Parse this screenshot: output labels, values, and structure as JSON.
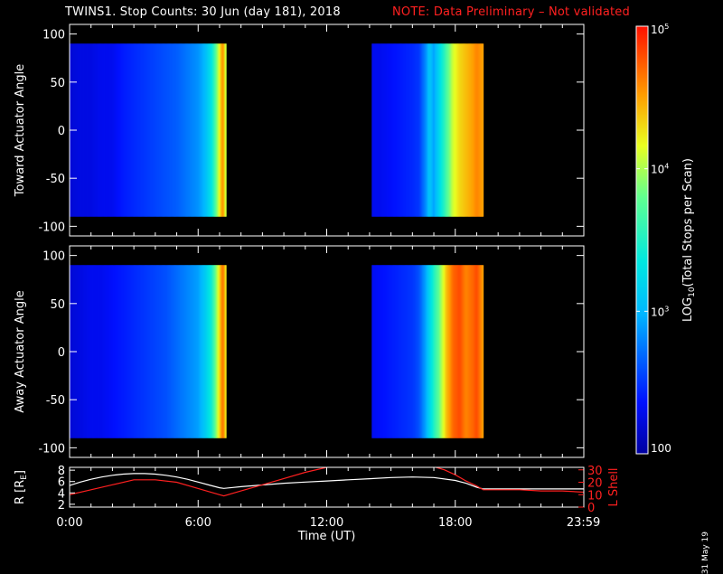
{
  "header": {
    "title": "TWINS1. Stop Counts: 30 Jun (day 181), 2018",
    "note": "NOTE: Data Preliminary – Not validated"
  },
  "footer": {
    "date_stamp": "31 May 19"
  },
  "colors": {
    "background": "#000000",
    "axes": "#ffffff",
    "note": "#ff2020",
    "l_shell": "#ff2020",
    "radius": "#ffffff"
  },
  "chart_data": [
    {
      "type": "heatmap",
      "panel": "toward",
      "ylabel": "Toward Actuator Angle",
      "xlim": [
        0,
        24
      ],
      "ylim": [
        -110,
        110
      ],
      "yticks": [
        -100,
        -50,
        0,
        50,
        100
      ],
      "data_ylim": [
        -90,
        90
      ],
      "segments": [
        {
          "t_start": 0.0,
          "t_end": 7.3,
          "log_counts_profile": [
            [
              0.0,
              2.2
            ],
            [
              0.5,
              2.25
            ],
            [
              1.0,
              2.25
            ],
            [
              1.5,
              2.3
            ],
            [
              2.0,
              2.3
            ],
            [
              2.5,
              2.4
            ],
            [
              3.0,
              2.45
            ],
            [
              3.5,
              2.5
            ],
            [
              4.0,
              2.55
            ],
            [
              4.5,
              2.6
            ],
            [
              5.0,
              2.65
            ],
            [
              5.5,
              2.75
            ],
            [
              6.0,
              2.85
            ],
            [
              6.3,
              3.0
            ],
            [
              6.6,
              3.3
            ],
            [
              6.8,
              3.7
            ],
            [
              7.0,
              4.2
            ],
            [
              7.15,
              4.6
            ],
            [
              7.3,
              4.0
            ]
          ]
        },
        {
          "t_start": 14.1,
          "t_end": 19.3,
          "log_counts_profile": [
            [
              14.1,
              2.3
            ],
            [
              14.5,
              2.3
            ],
            [
              15.0,
              2.35
            ],
            [
              15.5,
              2.4
            ],
            [
              16.0,
              2.45
            ],
            [
              16.3,
              2.5
            ],
            [
              16.6,
              2.8
            ],
            [
              16.8,
              3.1
            ],
            [
              17.0,
              2.9
            ],
            [
              17.3,
              3.3
            ],
            [
              17.6,
              3.7
            ],
            [
              17.9,
              4.1
            ],
            [
              18.2,
              4.3
            ],
            [
              18.5,
              4.4
            ],
            [
              18.8,
              4.5
            ],
            [
              19.0,
              4.6
            ],
            [
              19.3,
              4.5
            ]
          ]
        }
      ]
    },
    {
      "type": "heatmap",
      "panel": "away",
      "ylabel": "Away Actuator Angle",
      "xlim": [
        0,
        24
      ],
      "ylim": [
        -110,
        110
      ],
      "yticks": [
        -100,
        -50,
        0,
        50,
        100
      ],
      "data_ylim": [
        -90,
        90
      ],
      "segments": [
        {
          "t_start": 0.0,
          "t_end": 7.3,
          "log_counts_profile": [
            [
              0.0,
              2.2
            ],
            [
              0.5,
              2.25
            ],
            [
              1.0,
              2.3
            ],
            [
              1.5,
              2.3
            ],
            [
              2.0,
              2.35
            ],
            [
              2.5,
              2.4
            ],
            [
              3.0,
              2.45
            ],
            [
              3.5,
              2.5
            ],
            [
              4.0,
              2.55
            ],
            [
              4.5,
              2.6
            ],
            [
              5.0,
              2.7
            ],
            [
              5.5,
              2.8
            ],
            [
              6.0,
              2.9
            ],
            [
              6.3,
              3.1
            ],
            [
              6.6,
              3.4
            ],
            [
              6.8,
              3.8
            ],
            [
              7.0,
              4.3
            ],
            [
              7.15,
              4.7
            ],
            [
              7.3,
              4.2
            ]
          ]
        },
        {
          "t_start": 14.1,
          "t_end": 19.3,
          "log_counts_profile": [
            [
              14.1,
              2.3
            ],
            [
              14.5,
              2.35
            ],
            [
              15.0,
              2.4
            ],
            [
              15.5,
              2.45
            ],
            [
              16.0,
              2.5
            ],
            [
              16.3,
              2.6
            ],
            [
              16.6,
              2.9
            ],
            [
              16.8,
              3.2
            ],
            [
              17.0,
              3.5
            ],
            [
              17.3,
              3.9
            ],
            [
              17.6,
              4.4
            ],
            [
              17.9,
              4.7
            ],
            [
              18.2,
              4.8
            ],
            [
              18.5,
              4.6
            ],
            [
              18.8,
              4.7
            ],
            [
              19.0,
              4.8
            ],
            [
              19.3,
              4.5
            ]
          ]
        }
      ]
    },
    {
      "type": "line",
      "panel": "orbit",
      "ylabel_left": "R [R",
      "ylabel_left_sub": "E",
      "ylabel_left_close": "]",
      "ylabel_right": "L Shell",
      "xlabel": "Time (UT)",
      "xlim": [
        0,
        24
      ],
      "xticks": [
        "0:00",
        "6:00",
        "12:00",
        "18:00",
        "23:59"
      ],
      "xtick_values": [
        0,
        6,
        12,
        18,
        23.983
      ],
      "ylim_left": [
        1.5,
        8.5
      ],
      "yticks_left": [
        2,
        4,
        6,
        8
      ],
      "ylim_right": [
        0,
        32
      ],
      "yticks_right": [
        0,
        10,
        20,
        30
      ],
      "series": [
        {
          "axis": "left",
          "color": "#ffffff",
          "x": [
            0,
            0.5,
            1,
            1.5,
            2,
            2.5,
            3,
            3.5,
            4,
            4.5,
            5,
            5.5,
            6,
            6.5,
            7,
            7.2,
            8,
            9,
            10,
            11,
            12,
            13,
            14,
            15,
            16,
            17,
            18,
            18.5,
            19,
            19.3,
            20,
            21,
            22,
            23,
            24
          ],
          "y": [
            5.3,
            5.9,
            6.4,
            6.8,
            7.1,
            7.3,
            7.4,
            7.4,
            7.3,
            7.1,
            6.8,
            6.4,
            5.9,
            5.4,
            4.9,
            4.8,
            5.1,
            5.4,
            5.7,
            5.9,
            6.1,
            6.3,
            6.5,
            6.7,
            6.8,
            6.7,
            6.2,
            5.7,
            5.0,
            4.7,
            4.7,
            4.7,
            4.7,
            4.7,
            4.7
          ]
        },
        {
          "axis": "right",
          "color": "#ff2020",
          "x": [
            0,
            1,
            2,
            3,
            4,
            5,
            6,
            7,
            7.2,
            8,
            9,
            10,
            11,
            12,
            12.3,
            16.9,
            17.5,
            18,
            18.5,
            19,
            19.3,
            20,
            21,
            22,
            23,
            24
          ],
          "y": [
            10,
            14,
            18,
            22,
            22,
            20,
            15,
            10,
            9,
            13,
            18,
            23,
            28,
            32,
            33,
            33,
            30,
            26,
            21,
            17,
            14,
            14,
            14,
            13,
            13,
            12
          ]
        }
      ]
    },
    {
      "type": "colorbar",
      "label_prefix": "LOG",
      "label_sub": "10",
      "label_suffix": "(Total Stops per Scan)",
      "scale": "log",
      "range": [
        100,
        100000
      ],
      "ticks": [
        {
          "value": 100,
          "base": "100",
          "exp": ""
        },
        {
          "value": 1000,
          "base": "10",
          "exp": "3"
        },
        {
          "value": 10000,
          "base": "10",
          "exp": "4"
        },
        {
          "value": 100000,
          "base": "10",
          "exp": "5"
        }
      ]
    }
  ]
}
